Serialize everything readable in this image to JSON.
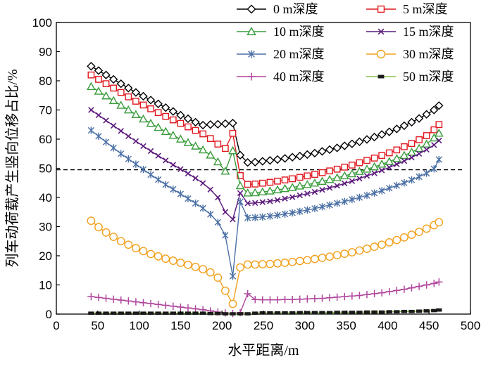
{
  "chart_data": {
    "type": "line",
    "title": "",
    "xlabel": "水平距离/m",
    "ylabel": "列车动荷载产生竖向位移占比/%",
    "xlim": [
      0,
      500
    ],
    "ylim": [
      0,
      100
    ],
    "x_ticks": [
      "0",
      "50",
      "100",
      "150",
      "200",
      "250",
      "300",
      "350",
      "400",
      "450",
      "500"
    ],
    "y_ticks": [
      "0",
      "10",
      "20",
      "30",
      "40",
      "50",
      "60",
      "70",
      "80",
      "90",
      "100"
    ],
    "reference_line": {
      "y": 49.5,
      "style": "dashed"
    },
    "legend_position": "top-right",
    "series": [
      {
        "name": "0 m深度",
        "marker": "diamond",
        "color": "#000000",
        "x": [
          42,
          51,
          60,
          69,
          78,
          87,
          96,
          105,
          114,
          123,
          132,
          141,
          150,
          159,
          168,
          177,
          186,
          195,
          204,
          213,
          222,
          231,
          240,
          249,
          258,
          267,
          276,
          285,
          294,
          303,
          312,
          321,
          330,
          339,
          348,
          357,
          366,
          375,
          384,
          393,
          402,
          411,
          420,
          429,
          438,
          447,
          456,
          462
        ],
        "y": [
          85,
          83.5,
          82,
          80.5,
          79,
          77.5,
          76,
          74.7,
          73.4,
          72.1,
          70.8,
          69.5,
          68.2,
          67,
          65.8,
          64.8,
          65,
          65.1,
          65.3,
          65.5,
          54.5,
          52,
          52.1,
          52.4,
          52.7,
          53,
          53.4,
          53.8,
          54.2,
          54.7,
          55.2,
          55.8,
          56.4,
          57,
          57.7,
          58.4,
          59.1,
          59.9,
          60.7,
          61.6,
          62.5,
          63.5,
          64.6,
          65.8,
          67.1,
          68.5,
          70,
          71.5
        ]
      },
      {
        "name": "5 m深度",
        "marker": "square",
        "color": "#e0191f",
        "x": [
          42,
          51,
          60,
          69,
          78,
          87,
          96,
          105,
          114,
          123,
          132,
          141,
          150,
          159,
          168,
          177,
          186,
          195,
          204,
          213,
          222,
          231,
          240,
          249,
          258,
          267,
          276,
          285,
          294,
          303,
          312,
          321,
          330,
          339,
          348,
          357,
          366,
          375,
          384,
          393,
          402,
          411,
          420,
          429,
          438,
          447,
          456,
          462
        ],
        "y": [
          82,
          80.5,
          79,
          77.5,
          76,
          74.5,
          73,
          71.7,
          70.4,
          69.1,
          67.8,
          66.6,
          65.4,
          64.2,
          63,
          61.8,
          60.2,
          58.3,
          56.8,
          62,
          47.5,
          44.5,
          44.6,
          44.9,
          45.2,
          45.6,
          46,
          46.4,
          46.9,
          47.4,
          47.9,
          48.5,
          49.1,
          49.7,
          50.4,
          51.1,
          51.9,
          52.7,
          53.5,
          54.4,
          55.3,
          56.3,
          57.4,
          58.5,
          59.8,
          61.2,
          63.2,
          65
        ]
      },
      {
        "name": "10 m深度",
        "marker": "triangle",
        "color": "#3a9c3c",
        "x": [
          42,
          51,
          60,
          69,
          78,
          87,
          96,
          105,
          114,
          123,
          132,
          141,
          150,
          159,
          168,
          177,
          186,
          195,
          204,
          213,
          222,
          231,
          240,
          249,
          258,
          267,
          276,
          285,
          294,
          303,
          312,
          321,
          330,
          339,
          348,
          357,
          366,
          375,
          384,
          393,
          402,
          411,
          420,
          429,
          438,
          447,
          456,
          462
        ],
        "y": [
          78,
          76.4,
          74.8,
          73.2,
          71.6,
          70,
          68.4,
          66.9,
          65.4,
          64,
          62.6,
          61.3,
          60,
          58.8,
          57.6,
          56.3,
          54.5,
          52.2,
          49,
          56,
          44,
          41.5,
          41.6,
          41.9,
          42.2,
          42.6,
          43,
          43.4,
          43.9,
          44.4,
          44.9,
          45.5,
          46.1,
          46.7,
          47.4,
          48.1,
          48.9,
          49.7,
          50.5,
          51.4,
          52.3,
          53.3,
          54.4,
          55.5,
          56.8,
          58.3,
          60.4,
          62
        ]
      },
      {
        "name": "15 m深度",
        "marker": "x",
        "color": "#5b1a7c",
        "x": [
          42,
          51,
          60,
          69,
          78,
          87,
          96,
          105,
          114,
          123,
          132,
          141,
          150,
          159,
          168,
          177,
          186,
          195,
          204,
          213,
          222,
          231,
          240,
          249,
          258,
          267,
          276,
          285,
          294,
          303,
          312,
          321,
          330,
          339,
          348,
          357,
          366,
          375,
          384,
          393,
          402,
          411,
          420,
          429,
          438,
          447,
          456,
          462
        ],
        "y": [
          70,
          68.2,
          66.4,
          64.6,
          62.8,
          61,
          59.3,
          57.6,
          55.9,
          54.3,
          52.7,
          51.2,
          49.7,
          48.2,
          46.6,
          44.9,
          42.7,
          40,
          35,
          32.5,
          41.5,
          38,
          38.1,
          38.4,
          38.7,
          39.1,
          39.6,
          40.1,
          40.7,
          41.3,
          41.9,
          42.6,
          43.3,
          44,
          44.8,
          45.6,
          46.5,
          47.4,
          48.3,
          49.3,
          50.3,
          51.4,
          52.5,
          53.7,
          55,
          56.4,
          58,
          59.5
        ]
      },
      {
        "name": "20 m深度",
        "marker": "asterisk",
        "color": "#4a6fa5",
        "x": [
          42,
          51,
          60,
          69,
          78,
          87,
          96,
          105,
          114,
          123,
          132,
          141,
          150,
          159,
          168,
          177,
          186,
          195,
          204,
          213,
          222,
          231,
          240,
          249,
          258,
          267,
          276,
          285,
          294,
          303,
          312,
          321,
          330,
          339,
          348,
          357,
          366,
          375,
          384,
          393,
          402,
          411,
          420,
          429,
          438,
          447,
          456,
          462
        ],
        "y": [
          63,
          61,
          59,
          57,
          55,
          53.2,
          51.4,
          49.6,
          47.8,
          46.1,
          44.4,
          42.8,
          41.2,
          39.6,
          38,
          36.3,
          34.2,
          31.5,
          27,
          13,
          38.5,
          33,
          33.1,
          33.3,
          33.6,
          33.9,
          34.3,
          34.7,
          35.2,
          35.7,
          36.2,
          36.8,
          37.4,
          38,
          38.6,
          39.3,
          40,
          40.7,
          41.5,
          42.3,
          43.2,
          44.1,
          45,
          46,
          47.1,
          48.3,
          49.8,
          53
        ]
      },
      {
        "name": "30 m深度",
        "marker": "circle",
        "color": "#f2a11e",
        "x": [
          42,
          51,
          60,
          69,
          78,
          87,
          96,
          105,
          114,
          123,
          132,
          141,
          150,
          159,
          168,
          177,
          186,
          195,
          204,
          213,
          222,
          231,
          240,
          249,
          258,
          267,
          276,
          285,
          294,
          303,
          312,
          321,
          330,
          339,
          348,
          357,
          366,
          375,
          384,
          393,
          402,
          411,
          420,
          429,
          438,
          447,
          456,
          462
        ],
        "y": [
          32,
          29.8,
          28,
          26.5,
          25,
          23.8,
          22.6,
          21.6,
          20.6,
          19.8,
          19,
          18.3,
          17.6,
          16.9,
          16.2,
          15.4,
          14.3,
          12.5,
          8,
          3.5,
          16,
          17,
          17,
          17.1,
          17.2,
          17.4,
          17.6,
          17.9,
          18.2,
          18.5,
          18.9,
          19.3,
          19.7,
          20.2,
          20.7,
          21.2,
          21.8,
          22.4,
          23.1,
          23.8,
          24.6,
          25.4,
          26.3,
          27.2,
          28.2,
          29.3,
          30.5,
          31.5
        ]
      },
      {
        "name": "40 m深度",
        "marker": "plus",
        "color": "#b0479d",
        "x": [
          42,
          51,
          60,
          69,
          78,
          87,
          96,
          105,
          114,
          123,
          132,
          141,
          150,
          159,
          168,
          177,
          186,
          195,
          204,
          213,
          222,
          231,
          240,
          249,
          258,
          267,
          276,
          285,
          294,
          303,
          312,
          321,
          330,
          339,
          348,
          357,
          366,
          375,
          384,
          393,
          402,
          411,
          420,
          429,
          438,
          447,
          456,
          462
        ],
        "y": [
          6,
          5.7,
          5.4,
          5.1,
          4.8,
          4.5,
          4.2,
          3.9,
          3.6,
          3.3,
          3,
          2.7,
          2.4,
          2.1,
          1.8,
          1.5,
          1.1,
          0.7,
          0.4,
          0.2,
          0.5,
          7,
          5,
          4.9,
          4.9,
          4.9,
          5,
          5,
          5.1,
          5.2,
          5.3,
          5.4,
          5.6,
          5.8,
          6,
          6.2,
          6.4,
          6.7,
          7,
          7.3,
          7.7,
          8.1,
          8.5,
          9,
          9.5,
          10,
          10.5,
          11
        ]
      },
      {
        "name": "50 m深度",
        "marker": "dash",
        "color": "#1a1a1a",
        "x": [
          42,
          51,
          60,
          69,
          78,
          87,
          96,
          105,
          114,
          123,
          132,
          141,
          150,
          159,
          168,
          177,
          186,
          195,
          204,
          213,
          222,
          231,
          240,
          249,
          258,
          267,
          276,
          285,
          294,
          303,
          312,
          321,
          330,
          339,
          348,
          357,
          366,
          375,
          384,
          393,
          402,
          411,
          420,
          429,
          438,
          447,
          456,
          462
        ],
        "y": [
          0.3,
          0.3,
          0.3,
          0.3,
          0.3,
          0.3,
          0.3,
          0.3,
          0.3,
          0.3,
          0.3,
          0.3,
          0.3,
          0.3,
          0.3,
          0.3,
          0.2,
          0.2,
          0.1,
          0.1,
          0.1,
          0.1,
          0.3,
          0.4,
          0.4,
          0.4,
          0.4,
          0.4,
          0.5,
          0.5,
          0.5,
          0.5,
          0.5,
          0.6,
          0.6,
          0.6,
          0.6,
          0.7,
          0.7,
          0.7,
          0.8,
          0.8,
          0.9,
          0.9,
          1,
          1.1,
          1.2,
          1.4
        ],
        "line_color": "#8ac249"
      }
    ]
  }
}
